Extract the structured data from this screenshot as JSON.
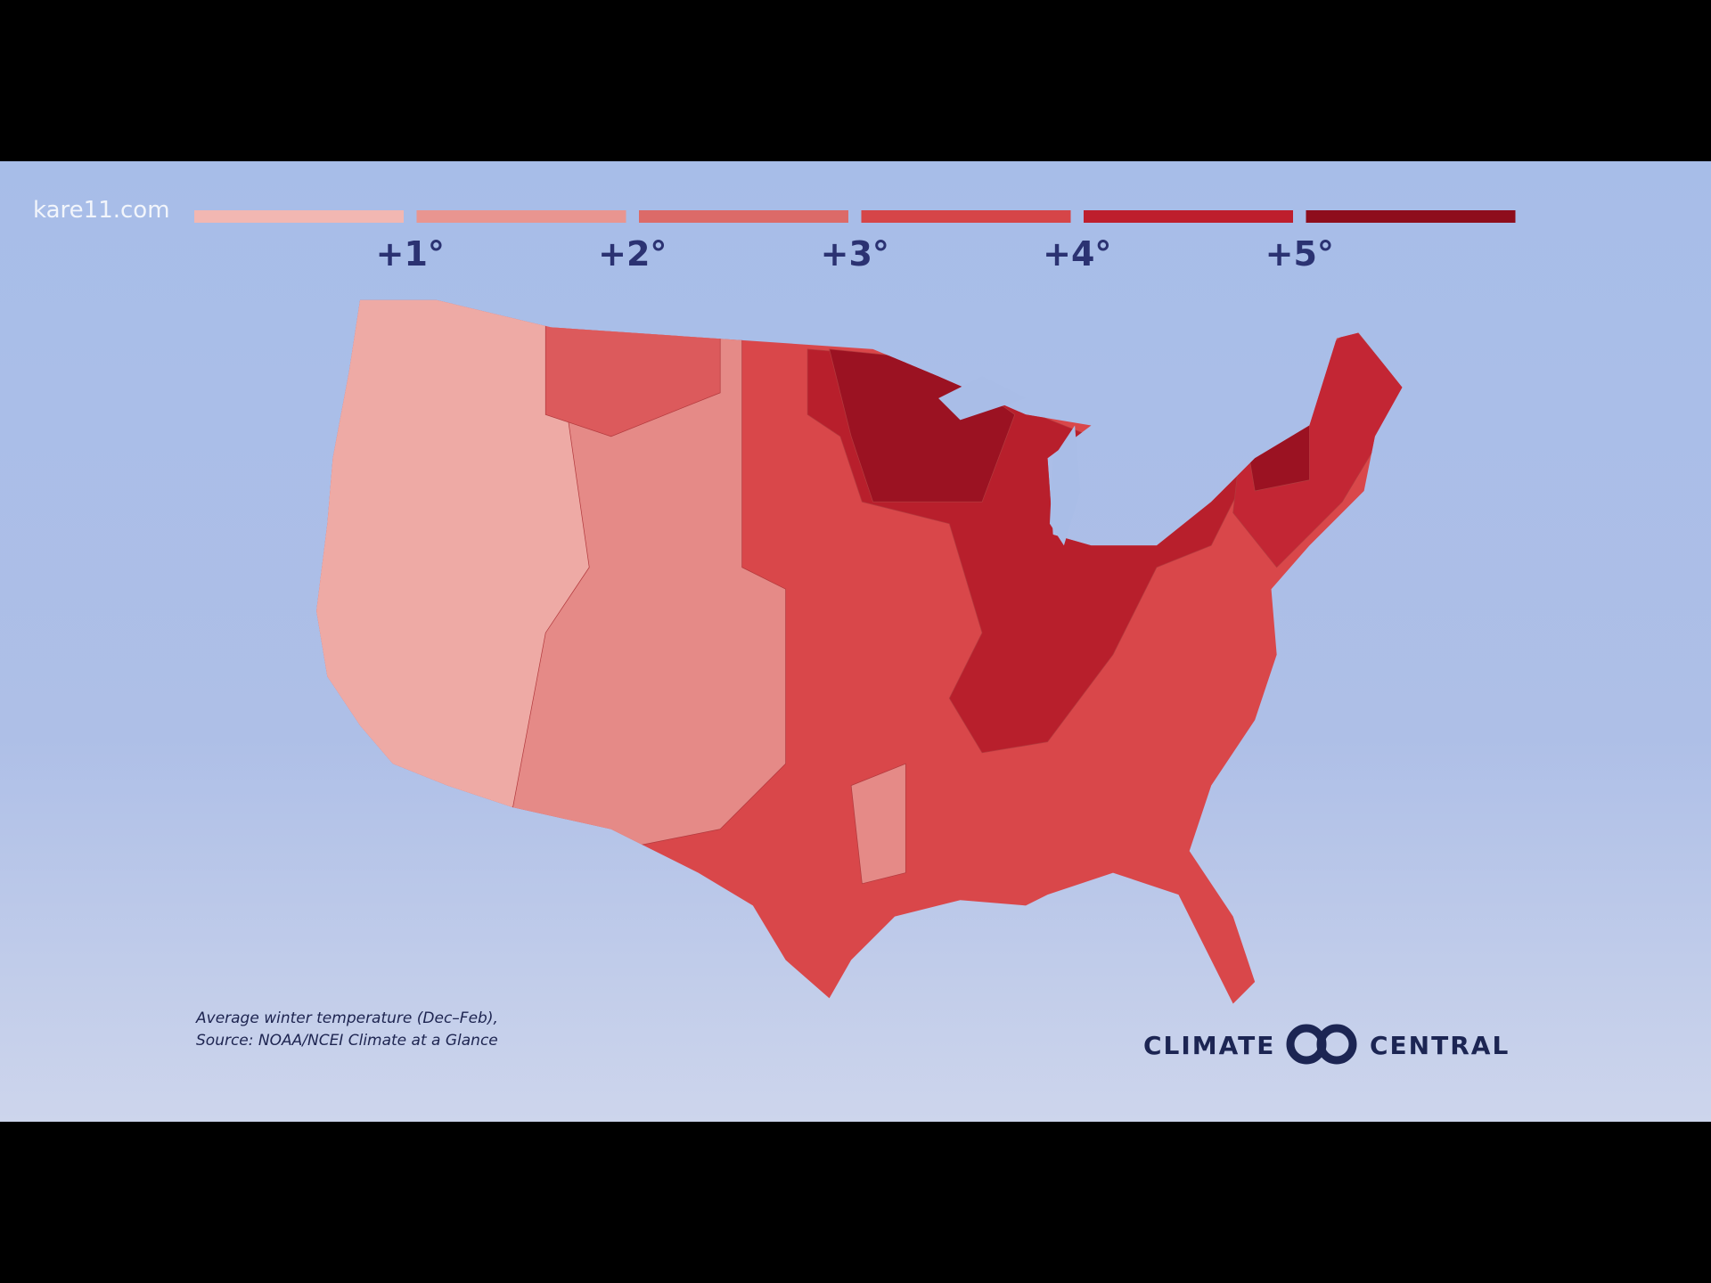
{
  "watermark": "kare11.com",
  "legend": {
    "labels": [
      "+1°",
      "+2°",
      "+3°",
      "+4°",
      "+5°"
    ],
    "colors": [
      "#f2b7b2",
      "#e99590",
      "#dc6a68",
      "#d64548",
      "#be1e2d",
      "#8e0d1c"
    ]
  },
  "footnote": {
    "lines": [
      "Average winter temperature (Dec–Feb),",
      "Source: NOAA/NCEI Climate at a Glance"
    ]
  },
  "logo": {
    "left": "CLIMATE",
    "right": "CENTRAL"
  }
}
